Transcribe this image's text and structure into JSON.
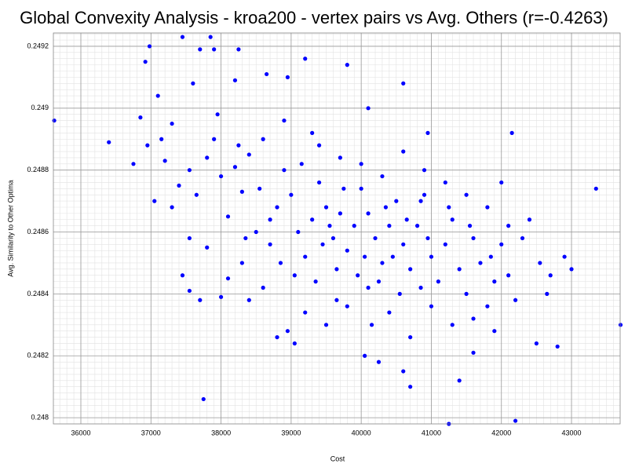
{
  "chart_data": {
    "type": "scatter",
    "title": "Global Convexity Analysis - kroa200 - vertex pairs vs Avg. Others (r=-0.4263)",
    "x_label": "Cost",
    "y_label": "Avg. Similarity to Other Optima",
    "xlim": [
      35608,
      43694
    ],
    "ylim": [
      0.24798,
      0.249243
    ],
    "xticks": [
      36000,
      37000,
      38000,
      39000,
      40000,
      41000,
      42000,
      43000
    ],
    "yticks": [
      0.248,
      0.2482,
      0.2484,
      0.2486,
      0.2488,
      0.249,
      0.2492
    ],
    "grid": true,
    "minor_grid": true,
    "x": [
      35620,
      36400,
      36750,
      36850,
      36920,
      36980,
      37100,
      37050,
      37200,
      37300,
      37450,
      37600,
      37700,
      37850,
      37900,
      38200,
      38250,
      38650,
      38950,
      39200,
      39800,
      40100,
      40600,
      40950,
      42150,
      43350,
      43700,
      37750,
      41250,
      42200,
      40700,
      40250,
      40050,
      39050,
      38950,
      41400,
      42500,
      42800,
      41600,
      40600,
      37300,
      37450,
      37550,
      37700,
      37800,
      37550,
      37400,
      37550,
      37650,
      37800,
      37900,
      38000,
      38100,
      38200,
      38300,
      38400,
      38500,
      38300,
      38100,
      38000,
      38400,
      38600,
      38700,
      38800,
      38900,
      39000,
      39100,
      39200,
      39300,
      39400,
      39500,
      39600,
      39700,
      39800,
      39900,
      40000,
      40100,
      40200,
      40300,
      40400,
      40500,
      40600,
      40700,
      40800,
      40900,
      41000,
      41100,
      41200,
      41300,
      41400,
      41500,
      41600,
      41700,
      41800,
      41900,
      42000,
      42100,
      42200,
      42300,
      42400,
      42550,
      42700,
      42900,
      43000,
      42650,
      38800,
      39200,
      39500,
      39800,
      40100,
      40400,
      40700,
      41000,
      41300,
      41600,
      41900,
      39400,
      39700,
      40000,
      40300,
      40600,
      40900,
      41200,
      41500,
      41800,
      42100,
      38600,
      38900,
      39300,
      38250,
      37950,
      39050,
      39350,
      39650,
      39950,
      40250,
      40550,
      40850,
      38700,
      38550,
      39150,
      39450,
      39750,
      40050,
      40350,
      40650,
      40950,
      41250,
      41550,
      38350,
      36950,
      37150,
      42000,
      41850,
      40150,
      39650,
      38850,
      40450,
      39550,
      40850
    ],
    "series": [
      {
        "color": "#0000ff",
        "values": [
          0.24896,
          0.24889,
          0.24882,
          0.24897,
          0.24915,
          0.2492,
          0.24904,
          0.2487,
          0.24883,
          0.24895,
          0.24923,
          0.24908,
          0.24919,
          0.24923,
          0.24919,
          0.24909,
          0.24919,
          0.24911,
          0.2491,
          0.24916,
          0.24914,
          0.249,
          0.24908,
          0.24892,
          0.24892,
          0.24874,
          0.2483,
          0.24806,
          0.24798,
          0.24799,
          0.2481,
          0.24818,
          0.2482,
          0.24824,
          0.24828,
          0.24812,
          0.24824,
          0.24823,
          0.24821,
          0.24815,
          0.24868,
          0.24846,
          0.24841,
          0.24838,
          0.24855,
          0.24858,
          0.24875,
          0.2488,
          0.24872,
          0.24884,
          0.2489,
          0.24878,
          0.24865,
          0.24881,
          0.24873,
          0.24885,
          0.2486,
          0.2485,
          0.24845,
          0.24839,
          0.24838,
          0.24842,
          0.24856,
          0.24868,
          0.2488,
          0.24872,
          0.2486,
          0.24852,
          0.24864,
          0.24876,
          0.24868,
          0.24858,
          0.24866,
          0.24854,
          0.24862,
          0.24874,
          0.24866,
          0.24858,
          0.2485,
          0.24862,
          0.2487,
          0.24856,
          0.24848,
          0.24862,
          0.24872,
          0.24852,
          0.24844,
          0.24856,
          0.24864,
          0.24848,
          0.2484,
          0.24858,
          0.2485,
          0.24836,
          0.24844,
          0.24856,
          0.24846,
          0.24838,
          0.24858,
          0.24864,
          0.2485,
          0.24846,
          0.24852,
          0.24848,
          0.2484,
          0.24826,
          0.24834,
          0.2483,
          0.24836,
          0.24842,
          0.24834,
          0.24826,
          0.24836,
          0.2483,
          0.24832,
          0.24828,
          0.24888,
          0.24884,
          0.24882,
          0.24878,
          0.24886,
          0.2488,
          0.24876,
          0.24872,
          0.24868,
          0.24862,
          0.2489,
          0.24896,
          0.24892,
          0.24888,
          0.24898,
          0.24846,
          0.24844,
          0.24848,
          0.24846,
          0.24844,
          0.2484,
          0.24842,
          0.24864,
          0.24874,
          0.24882,
          0.24856,
          0.24874,
          0.24852,
          0.24868,
          0.24864,
          0.24858,
          0.24868,
          0.24862,
          0.24858,
          0.24888,
          0.2489,
          0.24876,
          0.24852,
          0.2483,
          0.24838,
          0.2485,
          0.24852,
          0.24862,
          0.2487
        ]
      }
    ]
  }
}
